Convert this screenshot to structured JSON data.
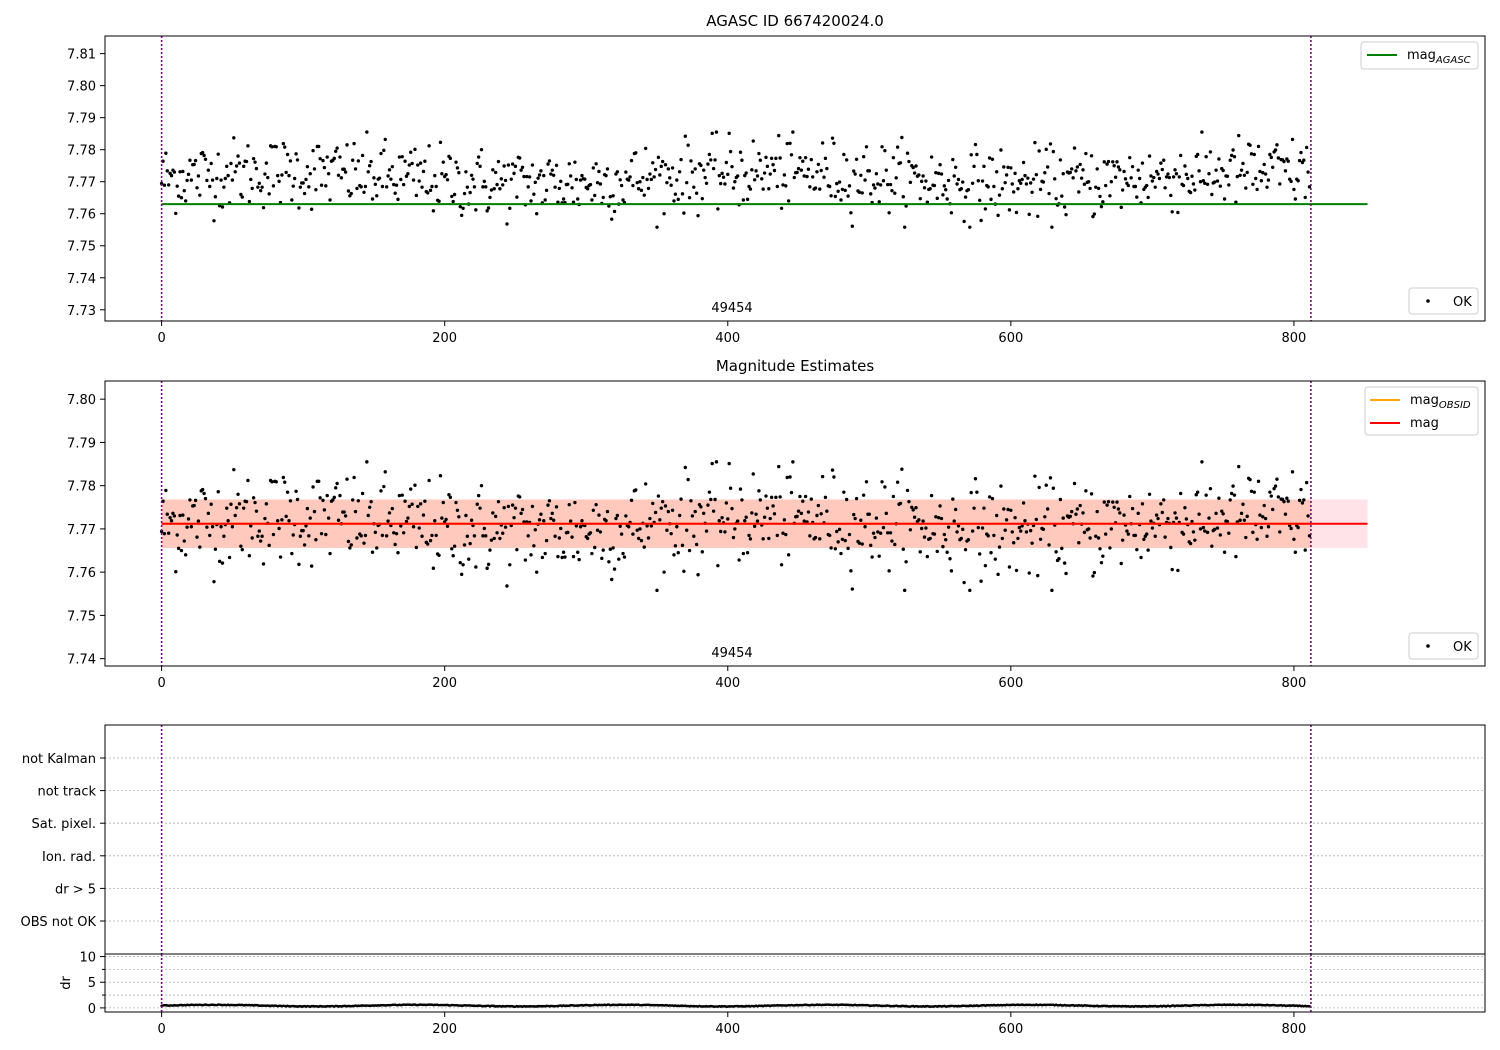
{
  "chart_data": [
    {
      "type": "scatter",
      "title": "AGASC ID 667420024.0",
      "xlabel": "",
      "ylabel": "",
      "xlim": [
        -40,
        935
      ],
      "ylim": [
        7.7265,
        7.8155
      ],
      "xticks": [
        0,
        200,
        400,
        600,
        800
      ],
      "yticks": [
        7.73,
        7.74,
        7.75,
        7.76,
        7.77,
        7.78,
        7.79,
        7.8,
        7.81
      ],
      "ytick_labels": [
        "7.73",
        "7.74",
        "7.75",
        "7.76",
        "7.77",
        "7.78",
        "7.79",
        "7.80",
        "7.81"
      ],
      "vlines": [
        0,
        812
      ],
      "hlines": [
        {
          "name": "mag",
          "subscript": "AGASC",
          "y": 7.763,
          "x": [
            0,
            852
          ],
          "color": "#008000"
        }
      ],
      "annotation": {
        "text": "49454",
        "x": 406
      },
      "series": [
        {
          "name": "OK",
          "n_points": 812,
          "y_mean": 7.7711,
          "y_std": 0.0055,
          "y_min": 7.7558,
          "y_max": 7.7855,
          "color": "#000000"
        }
      ],
      "legend_top": "top-right",
      "legend_bottom": "bottom-right",
      "grid": false
    },
    {
      "type": "scatter",
      "title": "Magnitude Estimates",
      "xlabel": "",
      "ylabel": "",
      "xlim": [
        -40,
        935
      ],
      "ylim": [
        7.7383,
        7.8042
      ],
      "xticks": [
        0,
        200,
        400,
        600,
        800
      ],
      "yticks": [
        7.74,
        7.75,
        7.76,
        7.77,
        7.78,
        7.79,
        7.8
      ],
      "ytick_labels": [
        "7.74",
        "7.75",
        "7.76",
        "7.77",
        "7.78",
        "7.79",
        "7.80"
      ],
      "vlines": [
        0,
        812
      ],
      "hlines": [
        {
          "name": "mag",
          "subscript": "OBSID",
          "y": 7.7712,
          "x": [
            0,
            812
          ],
          "color": "#ffa500"
        },
        {
          "name": "mag",
          "subscript": "",
          "y": 7.7712,
          "x": [
            0,
            852
          ],
          "color": "#ff0000"
        }
      ],
      "bands": [
        {
          "y": [
            7.7656,
            7.7768
          ],
          "x": [
            0,
            852
          ],
          "color": "#ffc0cb",
          "opacity": 0.45
        },
        {
          "y": [
            7.7656,
            7.7768
          ],
          "x": [
            0,
            812
          ],
          "color": "#ffa07a",
          "opacity": 0.38
        }
      ],
      "annotation": {
        "text": "49454",
        "x": 406
      },
      "series": [
        {
          "name": "OK",
          "n_points": 812,
          "y_mean": 7.7711,
          "y_std": 0.0055,
          "y_min": 7.7558,
          "y_max": 7.7855,
          "color": "#000000"
        }
      ],
      "legend_top": "top-right",
      "legend_bottom": "bottom-right",
      "grid": false
    },
    {
      "type": "scatter",
      "title": "",
      "xlabel": "",
      "ylabel": "",
      "xlim": [
        -40,
        935
      ],
      "categories": [
        "OBS not OK",
        "dr > 5",
        "Ion. rad.",
        "Sat. pixel.",
        "not track",
        "not Kalman"
      ],
      "vlines": [
        0,
        812
      ],
      "series": [],
      "grid": true
    },
    {
      "type": "scatter",
      "title": "",
      "xlabel": "",
      "ylabel": "dr",
      "xlim": [
        -40,
        935
      ],
      "ylim": [
        -0.8,
        10.5
      ],
      "xticks": [
        0,
        200,
        400,
        600,
        800
      ],
      "yticks": [
        0,
        5,
        10
      ],
      "ytick_labels": [
        "0",
        "5",
        "10"
      ],
      "vlines": [
        0,
        812
      ],
      "series": [
        {
          "name": "dr",
          "n_points": 812,
          "y_min": 0.0,
          "y_max": 1.1,
          "y_mean": 0.45,
          "color": "#000000"
        }
      ],
      "grid": true
    }
  ],
  "legend": {
    "agasc_mag": "mag",
    "agasc_sub": "AGASC",
    "obsid_mag": "mag",
    "obsid_sub": "OBSID",
    "mean_mag": "mag",
    "ok": "OK"
  },
  "colors": {
    "vline": "#800080",
    "green": "#008000",
    "orange": "#ffa500",
    "red": "#ff0000"
  }
}
